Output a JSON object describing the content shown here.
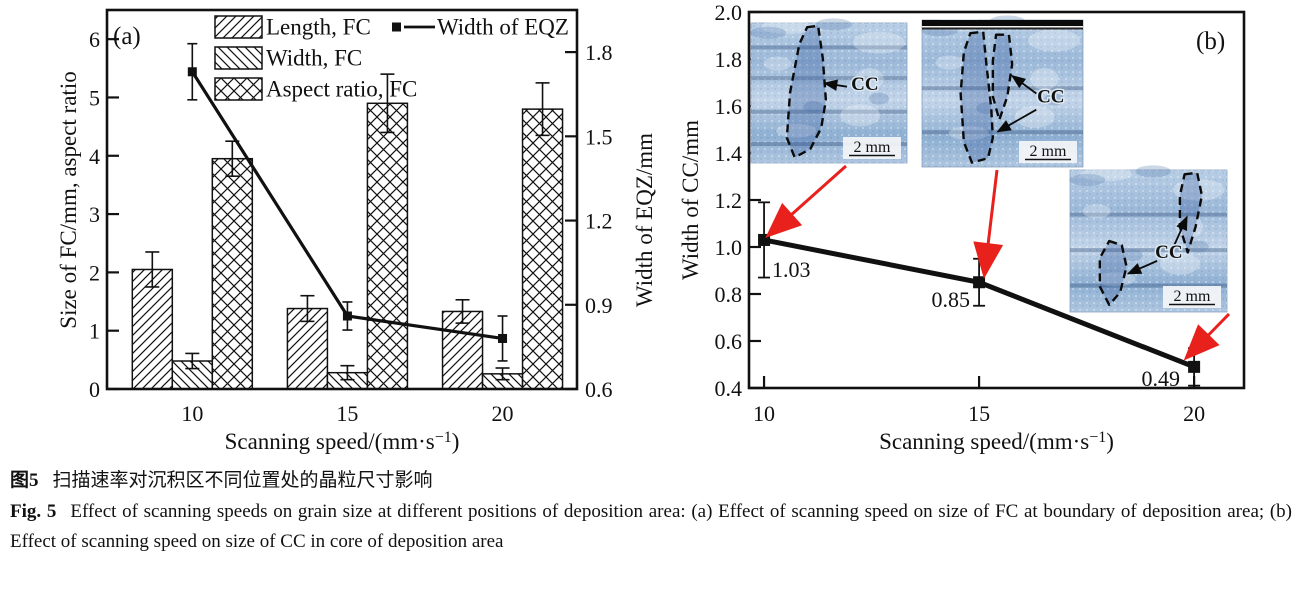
{
  "colors": {
    "ink": "#111111",
    "red_arrow": "#e8211d",
    "micro_base_light": "#c6d7ea",
    "micro_base_mid": "#9cb9d9",
    "micro_dark": "#5a7fb0",
    "micro_navy": "#1d3a66"
  },
  "caption": {
    "zh_label": "图5",
    "zh_text": "扫描速率对沉积区不同位置处的晶粒尺寸影响",
    "en_label": "Fig. 5",
    "en_text": "Effect of scanning speeds on grain size at different positions of deposition area: (a) Effect of scanning speed on size of FC at boundary of deposition area; (b) Effect of scanning speed on size of CC in core of deposition area"
  },
  "chart_data": [
    {
      "panel": "(a)",
      "type": "bar",
      "categories": [
        10,
        15,
        20
      ],
      "xticks": [
        "10",
        "15",
        "20"
      ],
      "xlabel": "Scanning speed/(mm·s⁻¹)",
      "ylabel_left": "Size of FC/mm, aspect ratio",
      "ylabel_right": "Width of EQZ/mm",
      "ylim_left": [
        0,
        6.5
      ],
      "yticks_left": [
        "0",
        "1",
        "2",
        "3",
        "4",
        "5",
        "6"
      ],
      "ylim_right": [
        0.6,
        1.95
      ],
      "yticks_right": [
        "0.6",
        "0.9",
        "1.2",
        "1.5",
        "1.8"
      ],
      "xlim": [
        7.25,
        22.4
      ],
      "grid": false,
      "legend_position": "top-inside",
      "series": [
        {
          "name": "Length, FC",
          "type": "bar",
          "axis": "left",
          "hatch": "diag-up",
          "values": [
            2.05,
            1.38,
            1.33
          ],
          "errors": [
            0.3,
            0.22,
            0.2
          ]
        },
        {
          "name": "Width, FC",
          "type": "bar",
          "axis": "left",
          "hatch": "diag-down",
          "values": [
            0.48,
            0.28,
            0.26
          ],
          "errors": [
            0.13,
            0.12,
            0.1
          ]
        },
        {
          "name": "Aspect ratio, FC",
          "type": "bar",
          "axis": "left",
          "hatch": "cross",
          "values": [
            3.95,
            4.9,
            4.8
          ],
          "errors": [
            0.3,
            0.5,
            0.45
          ]
        },
        {
          "name": "Width of EQZ",
          "type": "line",
          "axis": "right",
          "marker": "square",
          "values": [
            1.73,
            0.86,
            0.78
          ],
          "errors": [
            0.1,
            0.05,
            0.08
          ]
        }
      ]
    },
    {
      "panel": "(b)",
      "type": "line",
      "x": [
        10,
        15,
        20
      ],
      "xticks": [
        "10",
        "15",
        "20"
      ],
      "values": [
        1.03,
        0.85,
        0.49
      ],
      "errors": [
        0.16,
        0.1,
        0.08
      ],
      "point_labels": [
        "1.03",
        "0.85",
        "0.49"
      ],
      "xlabel": "Scanning speed/(mm·s⁻¹)",
      "ylabel": "Width of CC/mm",
      "ylim": [
        0.4,
        2.0
      ],
      "yticks": [
        "0.4",
        "0.6",
        "0.8",
        "1.0",
        "1.2",
        "1.4",
        "1.6",
        "1.8",
        "2.0"
      ],
      "xlim": [
        9.65,
        21.16
      ],
      "grid": false,
      "insets": [
        {
          "label": "CC",
          "scale_label": "2 mm"
        },
        {
          "label": "CC",
          "scale_label": "2 mm"
        },
        {
          "label": "CC",
          "scale_label": "2 mm"
        }
      ]
    }
  ]
}
